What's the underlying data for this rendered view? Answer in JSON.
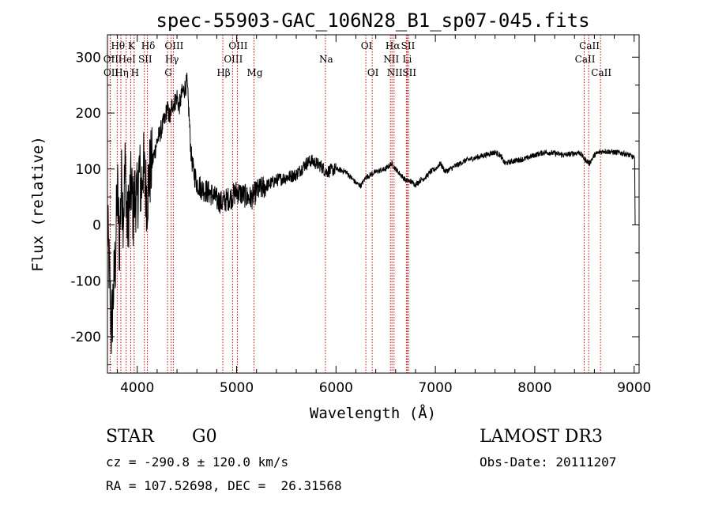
{
  "chart_data": {
    "type": "line",
    "title": "spec-55903-GAC_106N28_B1_sp07-045.fits",
    "xlabel": "Wavelength (Å)",
    "ylabel": "Flux (relative)",
    "xlim": [
      3700,
      9050
    ],
    "ylim": [
      -265,
      340
    ],
    "xticks": [
      4000,
      5000,
      6000,
      7000,
      8000,
      9000
    ],
    "yticks": [
      -200,
      -100,
      0,
      100,
      200,
      300
    ],
    "line_color": "#000000",
    "marker_color": "#cc0000",
    "spectrum_keypoints": [
      [
        3700,
        0
      ],
      [
        3720,
        -90
      ],
      [
        3740,
        -190
      ],
      [
        3760,
        -120
      ],
      [
        3780,
        -60
      ],
      [
        3800,
        70
      ],
      [
        3820,
        -40
      ],
      [
        3840,
        80
      ],
      [
        3860,
        20
      ],
      [
        3880,
        110
      ],
      [
        3900,
        -10
      ],
      [
        3920,
        40
      ],
      [
        3940,
        70
      ],
      [
        3960,
        20
      ],
      [
        3980,
        60
      ],
      [
        4000,
        40
      ],
      [
        4020,
        100
      ],
      [
        4040,
        60
      ],
      [
        4060,
        110
      ],
      [
        4080,
        70
      ],
      [
        4100,
        50
      ],
      [
        4120,
        90
      ],
      [
        4150,
        110
      ],
      [
        4200,
        150
      ],
      [
        4250,
        175
      ],
      [
        4280,
        190
      ],
      [
        4300,
        210
      ],
      [
        4330,
        190
      ],
      [
        4350,
        215
      ],
      [
        4380,
        220
      ],
      [
        4400,
        230
      ],
      [
        4420,
        210
      ],
      [
        4450,
        235
      ],
      [
        4480,
        245
      ],
      [
        4500,
        255
      ],
      [
        4520,
        200
      ],
      [
        4540,
        130
      ],
      [
        4560,
        100
      ],
      [
        4600,
        75
      ],
      [
        4650,
        65
      ],
      [
        4700,
        60
      ],
      [
        4750,
        55
      ],
      [
        4800,
        45
      ],
      [
        4850,
        40
      ],
      [
        4900,
        45
      ],
      [
        4950,
        50
      ],
      [
        5000,
        60
      ],
      [
        5050,
        55
      ],
      [
        5100,
        50
      ],
      [
        5150,
        48
      ],
      [
        5200,
        60
      ],
      [
        5300,
        70
      ],
      [
        5400,
        80
      ],
      [
        5500,
        85
      ],
      [
        5600,
        90
      ],
      [
        5700,
        110
      ],
      [
        5750,
        115
      ],
      [
        5800,
        110
      ],
      [
        5850,
        105
      ],
      [
        5900,
        95
      ],
      [
        6000,
        100
      ],
      [
        6100,
        95
      ],
      [
        6150,
        85
      ],
      [
        6200,
        75
      ],
      [
        6250,
        70
      ],
      [
        6300,
        85
      ],
      [
        6400,
        95
      ],
      [
        6500,
        100
      ],
      [
        6560,
        110
      ],
      [
        6600,
        100
      ],
      [
        6650,
        90
      ],
      [
        6700,
        80
      ],
      [
        6750,
        78
      ],
      [
        6800,
        72
      ],
      [
        6850,
        80
      ],
      [
        6900,
        85
      ],
      [
        6950,
        95
      ],
      [
        7000,
        100
      ],
      [
        7050,
        110
      ],
      [
        7100,
        95
      ],
      [
        7150,
        100
      ],
      [
        7200,
        105
      ],
      [
        7300,
        115
      ],
      [
        7400,
        120
      ],
      [
        7500,
        125
      ],
      [
        7600,
        130
      ],
      [
        7650,
        125
      ],
      [
        7700,
        110
      ],
      [
        7800,
        115
      ],
      [
        7900,
        118
      ],
      [
        8000,
        125
      ],
      [
        8100,
        130
      ],
      [
        8200,
        128
      ],
      [
        8300,
        125
      ],
      [
        8400,
        128
      ],
      [
        8450,
        130
      ],
      [
        8500,
        118
      ],
      [
        8550,
        110
      ],
      [
        8600,
        125
      ],
      [
        8650,
        130
      ],
      [
        8700,
        132
      ],
      [
        8800,
        130
      ],
      [
        8900,
        128
      ],
      [
        8950,
        125
      ],
      [
        9000,
        120
      ],
      [
        9010,
        0
      ]
    ],
    "line_markers": [
      {
        "label": "Hθ",
        "x": 3798,
        "row": 0
      },
      {
        "label": "OII",
        "x": 3727,
        "row": 1
      },
      {
        "label": "OII",
        "x": 3729,
        "row": 2
      },
      {
        "label": "Hη",
        "x": 3835,
        "row": 2
      },
      {
        "label": "K",
        "x": 3934,
        "row": 0
      },
      {
        "label": "HeI",
        "x": 3889,
        "row": 1
      },
      {
        "label": "H",
        "x": 3969,
        "row": 2
      },
      {
        "label": "SII",
        "x": 4072,
        "row": 1
      },
      {
        "label": "Hδ",
        "x": 4102,
        "row": 0
      },
      {
        "label": "OIII",
        "x": 4363,
        "row": 0
      },
      {
        "label": "Hγ",
        "x": 4341,
        "row": 1
      },
      {
        "label": "G",
        "x": 4305,
        "row": 2
      },
      {
        "label": "Hβ",
        "x": 4861,
        "row": 2
      },
      {
        "label": "OIII",
        "x": 4959,
        "row": 1
      },
      {
        "label": "OIII",
        "x": 5007,
        "row": 0
      },
      {
        "label": "Mg",
        "x": 5175,
        "row": 2
      },
      {
        "label": "Na",
        "x": 5893,
        "row": 1
      },
      {
        "label": "OI",
        "x": 6300,
        "row": 0
      },
      {
        "label": "OI",
        "x": 6364,
        "row": 2
      },
      {
        "label": "Hα",
        "x": 6563,
        "row": 0
      },
      {
        "label": "NII",
        "x": 6548,
        "row": 1
      },
      {
        "label": "NII",
        "x": 6584,
        "row": 2
      },
      {
        "label": "SII",
        "x": 6717,
        "row": 0
      },
      {
        "label": "Li",
        "x": 6708,
        "row": 1
      },
      {
        "label": "SII",
        "x": 6731,
        "row": 2
      },
      {
        "label": "CaII",
        "x": 8542,
        "row": 0
      },
      {
        "label": "CaII",
        "x": 8498,
        "row": 1
      },
      {
        "label": "CaII",
        "x": 8662,
        "row": 2
      }
    ]
  },
  "footer": {
    "class_label": "STAR",
    "subclass_label": "G0",
    "survey_label": "LAMOST DR3",
    "redshift_text": "cz = -290.8 ± 120.0 km/s",
    "obs_date_text": "Obs-Date: 20111207",
    "coords_text": "RA = 107.52698, DEC =  26.31568"
  }
}
